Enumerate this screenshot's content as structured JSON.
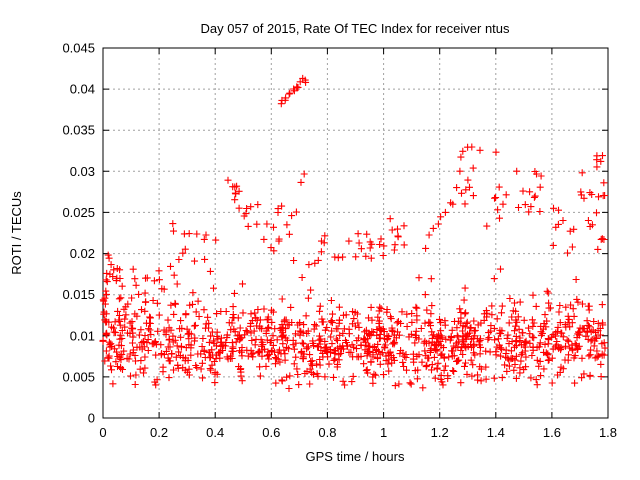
{
  "chart_data": {
    "type": "scatter",
    "title": "Day 057 of 2015, Rate Of TEC Index for receiver ntus",
    "xlabel": "GPS time / hours",
    "ylabel": "ROTI / TECUs",
    "xlim": [
      0,
      1.8
    ],
    "ylim": [
      0,
      0.045
    ],
    "xticks": [
      0,
      0.2,
      0.4,
      0.6,
      0.8,
      1,
      1.2,
      1.4,
      1.6,
      1.8
    ],
    "xtick_labels": [
      "0",
      "0.2",
      "0.4",
      "0.6",
      "0.8",
      "1",
      "1.2",
      "1.4",
      "1.6",
      "1.8"
    ],
    "yticks": [
      0,
      0.005,
      0.01,
      0.015,
      0.02,
      0.025,
      0.03,
      0.035,
      0.04,
      0.045
    ],
    "ytick_labels": [
      "0",
      "0.005",
      "0.01",
      "0.015",
      "0.02",
      "0.025",
      "0.03",
      "0.035",
      "0.04",
      "0.045"
    ],
    "grid": true,
    "grid_style": "dashed",
    "grid_color": "#a0a0a0",
    "axis_color": "#000000",
    "background_color": "#ffffff",
    "legend": "none",
    "marker": {
      "shape": "plus",
      "color": "#ff0000",
      "size": 7
    },
    "summary": "Approximately 1300 red plus markers form a dense band between 0.004 and 0.02 TECU across 0 to 1.8 hours; an isolated ascending cluster near 0.64-0.72 h reaches 0.039-0.041; secondary peaks near 0.43-0.56 h (up to 0.029), 1.25-1.35 h (up to 0.0335), 1.47-1.57 h (up to 0.030) and 1.70-1.79 h (up to 0.032).",
    "scatter_model": {
      "seed": 7,
      "base": {
        "n": 1150,
        "x": [
          0.002,
          1.79
        ],
        "y_min": 0.0035,
        "y_half": 0.0055,
        "tail_fraction": 0.18,
        "tail_extra": 0.0075
      },
      "clusters": [
        {
          "x": [
            0.635,
            0.725
          ],
          "y": [
            0.0387,
            0.0412
          ],
          "n": 15,
          "trend": "rise"
        },
        {
          "x": [
            0.43,
            0.5
          ],
          "y": [
            0.0255,
            0.029
          ],
          "n": 9
        },
        {
          "x": [
            0.5,
            0.56
          ],
          "y": [
            0.023,
            0.0262
          ],
          "n": 7
        },
        {
          "x": [
            0.56,
            0.63
          ],
          "y": [
            0.02,
            0.024
          ],
          "n": 6
        },
        {
          "x": [
            0.705,
            0.735
          ],
          "y": [
            0.0285,
            0.03
          ],
          "n": 2
        },
        {
          "x": [
            0.62,
            0.7
          ],
          "y": [
            0.021,
            0.0262
          ],
          "n": 8
        },
        {
          "x": [
            0.73,
            0.8
          ],
          "y": [
            0.018,
            0.0225
          ],
          "n": 7
        },
        {
          "x": [
            0.245,
            0.265
          ],
          "y": [
            0.0225,
            0.0237
          ],
          "n": 2
        },
        {
          "x": [
            0.28,
            0.42
          ],
          "y": [
            0.0175,
            0.0225
          ],
          "n": 10
        },
        {
          "x": [
            0.85,
            0.98
          ],
          "y": [
            0.0195,
            0.0225
          ],
          "n": 11
        },
        {
          "x": [
            0.95,
            1.01
          ],
          "y": [
            0.0185,
            0.023
          ],
          "n": 5
        },
        {
          "x": [
            1.02,
            1.1
          ],
          "y": [
            0.02,
            0.0245
          ],
          "n": 9
        },
        {
          "x": [
            1.15,
            1.25
          ],
          "y": [
            0.021,
            0.0265
          ],
          "n": 8,
          "trend": "rise"
        },
        {
          "x": [
            1.25,
            1.35
          ],
          "y": [
            0.026,
            0.0335
          ],
          "n": 14
        },
        {
          "x": [
            1.36,
            1.44
          ],
          "y": [
            0.023,
            0.0285
          ],
          "n": 8
        },
        {
          "x": [
            1.395,
            1.405
          ],
          "y": [
            0.032,
            0.0325
          ],
          "n": 1
        },
        {
          "x": [
            1.47,
            1.57
          ],
          "y": [
            0.025,
            0.0302
          ],
          "n": 12
        },
        {
          "x": [
            1.545,
            1.565
          ],
          "y": [
            0.0293,
            0.0305
          ],
          "n": 2
        },
        {
          "x": [
            1.6,
            1.68
          ],
          "y": [
            0.02,
            0.026
          ],
          "n": 10
        },
        {
          "x": [
            1.7,
            1.79
          ],
          "y": [
            0.026,
            0.032
          ],
          "n": 15
        },
        {
          "x": [
            1.73,
            1.79
          ],
          "y": [
            0.0205,
            0.025
          ],
          "n": 8
        },
        {
          "x": [
            0.005,
            0.06
          ],
          "y": [
            0.015,
            0.0195
          ],
          "n": 10
        },
        {
          "x": [
            0.06,
            0.16
          ],
          "y": [
            0.014,
            0.0185
          ],
          "n": 8
        },
        {
          "x": [
            0.18,
            0.26
          ],
          "y": [
            0.015,
            0.019
          ],
          "n": 6
        },
        {
          "x": [
            0.0,
            0.02
          ],
          "y": [
            0.008,
            0.0185
          ],
          "n": 12
        }
      ]
    }
  }
}
